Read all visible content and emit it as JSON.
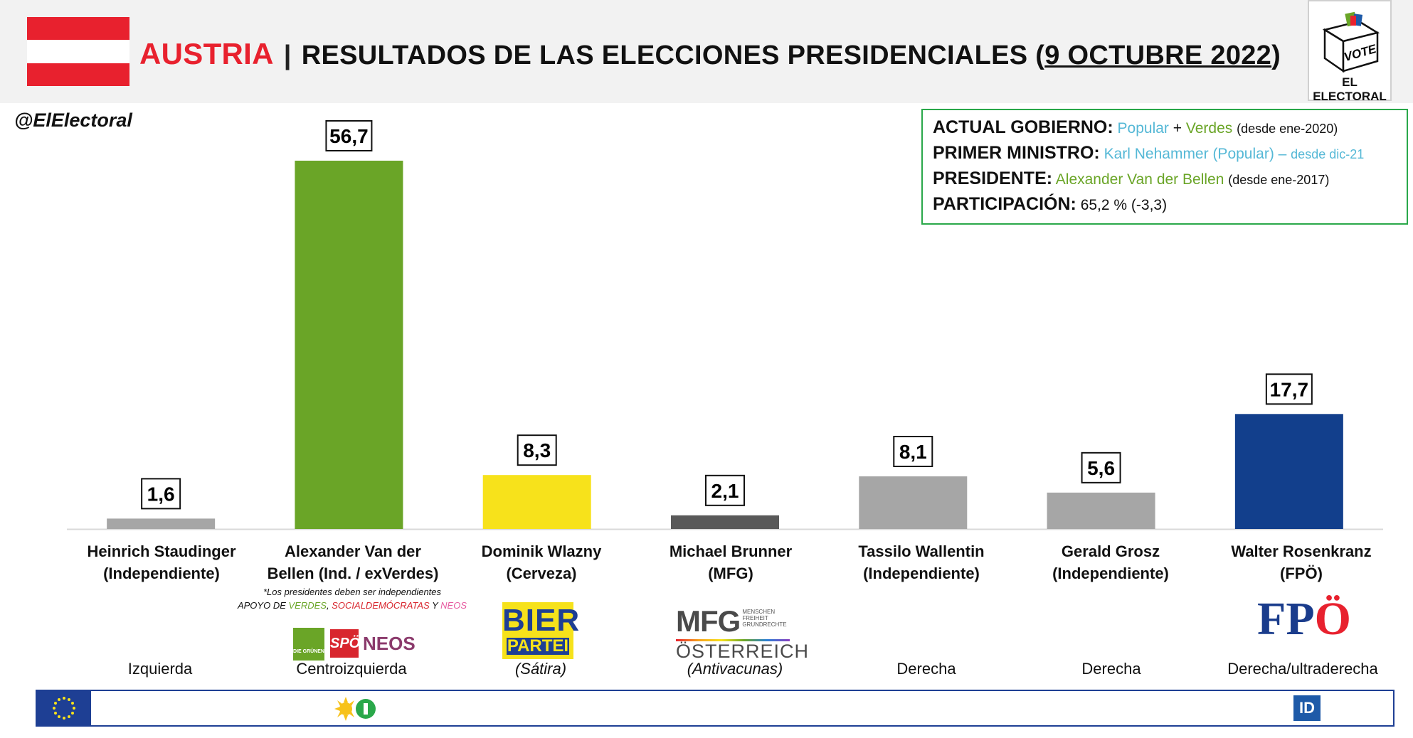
{
  "header": {
    "country": "AUSTRIA",
    "separator": "|",
    "title": "RESULTADOS DE LAS ELECCIONES PRESIDENCIALES",
    "date_open": "(",
    "date": "9 OCTUBRE 2022",
    "date_close": ")",
    "flag_colors": [
      "#e8212e",
      "#ffffff",
      "#e8212e"
    ]
  },
  "logo": {
    "vote": "VOTE",
    "name": "EL ELECTORAL"
  },
  "handle": "@ElElectoral",
  "info": {
    "gobierno_label": "ACTUAL GOBIERNO:",
    "gobierno_p1": "Popular",
    "gobierno_plus": "+",
    "gobierno_p2": "Verdes",
    "gobierno_since": "(desde ene-2020)",
    "pm_label": "PRIMER MINISTRO:",
    "pm_value": "Karl Nehammer (Popular) –",
    "pm_since": "desde dic-21",
    "pres_label": "PRESIDENTE:",
    "pres_value": "Alexander Van der Bellen",
    "pres_since": "(desde ene-2017)",
    "part_label": "PARTICIPACIÓN:",
    "part_value": "65,2 % (-3,3)"
  },
  "chart_data": {
    "type": "bar",
    "categories": [
      "Heinrich Staudinger (Independiente)",
      "Alexander Van der Bellen (Ind. / exVerdes)",
      "Dominik Wlazny (Cerveza)",
      "Michael Brunner (MFG)",
      "Tassilo Wallentin (Independiente)",
      "Gerald Grosz (Independiente)",
      "Walter Rosenkranz (FPÖ)"
    ],
    "values": [
      1.6,
      56.7,
      8.3,
      2.1,
      8.1,
      5.6,
      17.7
    ],
    "value_labels": [
      "1,6",
      "56,7",
      "8,3",
      "2,1",
      "8,1",
      "5,6",
      "17,7"
    ],
    "colors": [
      "#a6a6a6",
      "#6aa527",
      "#f7e21b",
      "#595959",
      "#a6a6a6",
      "#a6a6a6",
      "#123f8c"
    ],
    "ylim": [
      0,
      56.7
    ],
    "grid": false,
    "legend": "none"
  },
  "candidates": [
    {
      "line1": "Heinrich Staudinger",
      "line2": "(Independiente)",
      "ideology": "Izquierda"
    },
    {
      "line1": "Alexander Van der",
      "line2": "Bellen (Ind. / exVerdes)",
      "ideology": "Centroizquierda"
    },
    {
      "line1": "Dominik Wlazny",
      "line2": "(Cerveza)",
      "ideology": "(Sátira)"
    },
    {
      "line1": "Michael Brunner",
      "line2": "(MFG)",
      "ideology": "(Antivacunas)"
    },
    {
      "line1": "Tassilo Wallentin",
      "line2": "(Independiente)",
      "ideology": "Derecha"
    },
    {
      "line1": "Gerald Grosz",
      "line2": "(Independiente)",
      "ideology": "Derecha"
    },
    {
      "line1": "Walter Rosenkranz",
      "line2": "(FPÖ)",
      "ideology": "Derecha/ultraderecha"
    }
  ],
  "note": {
    "line1": "*Los presidentes deben ser independientes",
    "apoyo": "APOYO DE",
    "verdes": "VERDES",
    "comma": ",",
    "social": "SOCIALDEMÓCRATAS",
    "y": "Y",
    "neos": "NEOS"
  },
  "party_logos": {
    "gruene": "DIE GRÜNEN",
    "spo": "SPÖ",
    "neos": "NEOS",
    "bier1": "BIER",
    "bier2": "PARTEI",
    "mfg1": "MFG",
    "mfg_sub1": "MENSCHEN",
    "mfg_sub2": "FREIHEIT",
    "mfg_sub3": "GRUNDRECHTE",
    "mfg2": "ÖSTERREICH",
    "fpo_fp": "FP",
    "fpo_o": "Ö",
    "id": "ID"
  }
}
